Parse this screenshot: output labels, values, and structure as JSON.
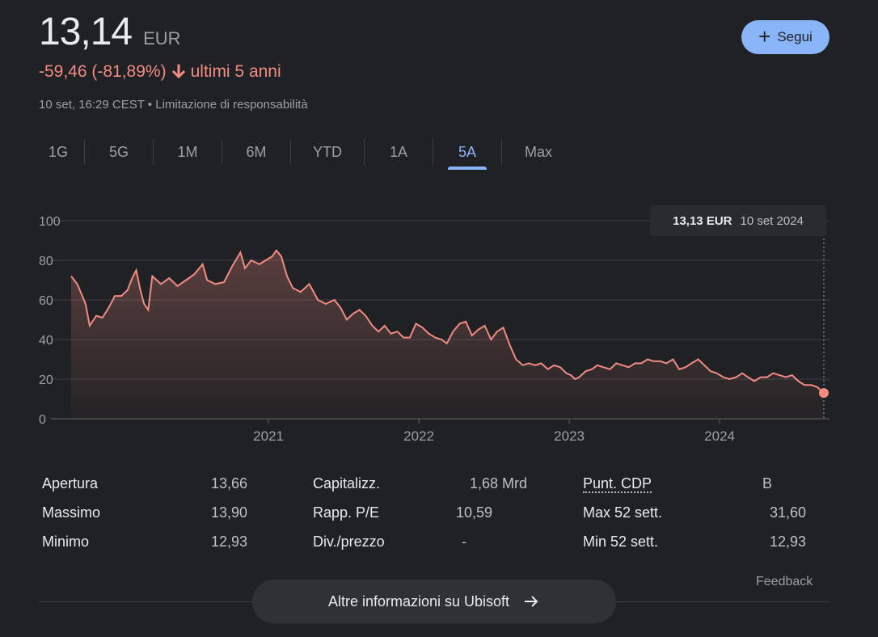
{
  "header": {
    "price": "13,14",
    "currency": "EUR",
    "change": "-59,46 (-81,89%)",
    "change_period": "ultimi 5 anni",
    "timestamp": "10 set, 16:29 CEST •",
    "disclaimer": "Limitazione di responsabilità",
    "follow_label": "Segui"
  },
  "tabs": [
    "1G",
    "5G",
    "1M",
    "6M",
    "YTD",
    "1A",
    "5A",
    "Max"
  ],
  "active_tab": "5A",
  "tooltip": {
    "price": "13,13 EUR",
    "date": "10 set 2024"
  },
  "chart_data": {
    "type": "area",
    "y_ticks": [
      "0",
      "20",
      "40",
      "60",
      "80",
      "100"
    ],
    "x_ticks": [
      "2021",
      "2022",
      "2023",
      "2024"
    ],
    "ylim": [
      0,
      100
    ],
    "grid": true,
    "line_color": "#f28b82",
    "x": [
      "2019-09-10",
      "2019-09-25",
      "2019-10-15",
      "2019-10-25",
      "2019-11-10",
      "2019-11-25",
      "2019-12-10",
      "2019-12-25",
      "2020-01-10",
      "2020-01-25",
      "2020-02-05",
      "2020-02-15",
      "2020-02-25",
      "2020-03-05",
      "2020-03-15",
      "2020-03-25",
      "2020-04-15",
      "2020-05-05",
      "2020-05-25",
      "2020-06-15",
      "2020-07-05",
      "2020-07-25",
      "2020-08-05",
      "2020-08-25",
      "2020-09-15",
      "2020-10-05",
      "2020-10-25",
      "2020-11-05",
      "2020-11-20",
      "2020-12-10",
      "2020-12-25",
      "2021-01-10",
      "2021-01-20",
      "2021-02-01",
      "2021-02-15",
      "2021-03-01",
      "2021-03-20",
      "2021-04-10",
      "2021-05-01",
      "2021-05-20",
      "2021-06-10",
      "2021-06-25",
      "2021-07-10",
      "2021-07-25",
      "2021-08-10",
      "2021-08-25",
      "2021-09-10",
      "2021-09-25",
      "2021-10-10",
      "2021-10-25",
      "2021-11-10",
      "2021-11-25",
      "2021-12-10",
      "2021-12-25",
      "2022-01-10",
      "2022-01-25",
      "2022-02-10",
      "2022-02-25",
      "2022-03-10",
      "2022-03-25",
      "2022-04-10",
      "2022-04-25",
      "2022-05-10",
      "2022-05-25",
      "2022-06-10",
      "2022-06-25",
      "2022-07-10",
      "2022-07-25",
      "2022-08-10",
      "2022-08-25",
      "2022-09-10",
      "2022-09-25",
      "2022-10-10",
      "2022-10-25",
      "2022-11-10",
      "2022-11-25",
      "2022-12-10",
      "2022-12-25",
      "2023-01-05",
      "2023-01-15",
      "2023-01-25",
      "2023-02-10",
      "2023-02-25",
      "2023-03-10",
      "2023-03-25",
      "2023-04-10",
      "2023-04-25",
      "2023-05-10",
      "2023-05-25",
      "2023-06-10",
      "2023-06-25",
      "2023-07-10",
      "2023-07-25",
      "2023-08-10",
      "2023-08-25",
      "2023-09-10",
      "2023-09-25",
      "2023-10-10",
      "2023-10-25",
      "2023-11-10",
      "2023-11-25",
      "2023-12-10",
      "2023-12-25",
      "2024-01-10",
      "2024-01-25",
      "2024-02-10",
      "2024-02-25",
      "2024-03-10",
      "2024-03-25",
      "2024-04-10",
      "2024-04-25",
      "2024-05-10",
      "2024-05-25",
      "2024-06-10",
      "2024-06-25",
      "2024-07-10",
      "2024-07-25",
      "2024-08-10",
      "2024-08-25",
      "2024-09-10"
    ],
    "values": [
      72,
      68,
      58,
      47,
      52,
      51,
      56,
      62,
      62,
      65,
      71,
      75,
      65,
      58,
      55,
      72,
      68,
      71,
      67,
      70,
      73,
      78,
      70,
      68,
      69,
      77,
      84,
      76,
      80,
      78,
      80,
      82,
      85,
      82,
      72,
      66,
      64,
      68,
      60,
      58,
      60,
      56,
      50,
      53,
      55,
      52,
      47,
      44,
      47,
      43,
      44,
      41,
      41,
      48,
      46,
      43,
      41,
      40,
      38,
      44,
      48,
      49,
      42,
      45,
      47,
      40,
      44,
      46,
      37,
      30,
      27,
      28,
      27,
      28,
      25,
      27,
      26,
      23,
      22,
      20,
      21,
      24,
      25,
      27,
      26,
      25,
      28,
      27,
      26,
      28,
      28,
      30,
      29,
      29,
      28,
      30,
      25,
      26,
      28,
      30,
      27,
      24,
      23,
      21,
      20,
      21,
      23,
      21,
      19,
      21,
      21,
      23,
      22,
      21,
      22,
      19,
      17,
      17,
      16,
      13
    ]
  },
  "stats": [
    [
      {
        "label": "Apertura",
        "value": "13,66"
      },
      {
        "label": "Massimo",
        "value": "13,90"
      },
      {
        "label": "Minimo",
        "value": "12,93"
      }
    ],
    [
      {
        "label": "Capitalizz.",
        "value": "1,68 Mrd"
      },
      {
        "label": "Rapp. P/E",
        "value": "10,59"
      },
      {
        "label": "Div./prezzo",
        "value": "-"
      }
    ],
    [
      {
        "label": "Punt. CDP",
        "value": "B"
      },
      {
        "label": "Max 52 sett.",
        "value": "31,60"
      },
      {
        "label": "Min 52 sett.",
        "value": "12,93"
      }
    ]
  ],
  "feedback_label": "Feedback",
  "more_info_label": "Altre informazioni su Ubisoft"
}
